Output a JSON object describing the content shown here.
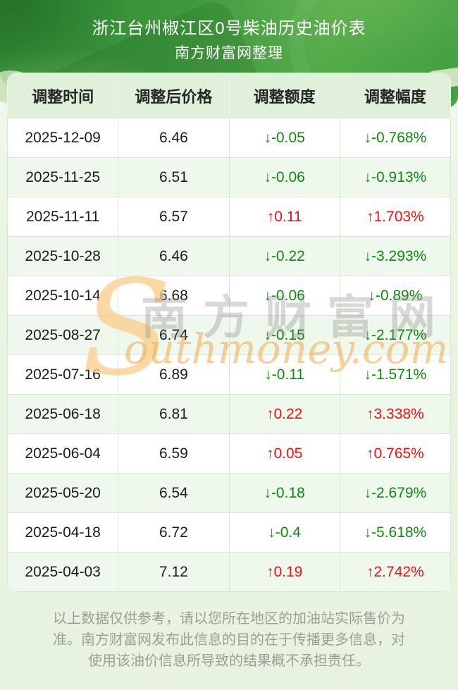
{
  "header": {
    "title": "浙江台州椒江区0号柴油历史油价表",
    "subtitle": "南方财富网整理"
  },
  "table": {
    "columns": [
      "调整时间",
      "调整后价格",
      "调整额度",
      "调整幅度"
    ],
    "rows": [
      {
        "date": "2025-12-09",
        "price": "6.46",
        "change": "-0.05",
        "percent": "-0.768%",
        "direction": "down"
      },
      {
        "date": "2025-11-25",
        "price": "6.51",
        "change": "-0.06",
        "percent": "-0.913%",
        "direction": "down"
      },
      {
        "date": "2025-11-11",
        "price": "6.57",
        "change": "0.11",
        "percent": "1.703%",
        "direction": "up"
      },
      {
        "date": "2025-10-28",
        "price": "6.46",
        "change": "-0.22",
        "percent": "-3.293%",
        "direction": "down"
      },
      {
        "date": "2025-10-14",
        "price": "6.68",
        "change": "-0.06",
        "percent": "-0.89%",
        "direction": "down"
      },
      {
        "date": "2025-08-27",
        "price": "6.74",
        "change": "-0.15",
        "percent": "-2.177%",
        "direction": "down"
      },
      {
        "date": "2025-07-16",
        "price": "6.89",
        "change": "-0.11",
        "percent": "-1.571%",
        "direction": "down"
      },
      {
        "date": "2025-06-18",
        "price": "6.81",
        "change": "0.22",
        "percent": "3.338%",
        "direction": "up"
      },
      {
        "date": "2025-06-04",
        "price": "6.59",
        "change": "0.05",
        "percent": "0.765%",
        "direction": "up"
      },
      {
        "date": "2025-05-20",
        "price": "6.54",
        "change": "-0.18",
        "percent": "-2.679%",
        "direction": "down"
      },
      {
        "date": "2025-04-18",
        "price": "6.72",
        "change": "-0.4",
        "percent": "-5.618%",
        "direction": "down"
      },
      {
        "date": "2025-04-03",
        "price": "7.12",
        "change": "0.19",
        "percent": "2.742%",
        "direction": "up"
      }
    ]
  },
  "arrows": {
    "up": "↑",
    "down": "↓"
  },
  "watermark": {
    "initial": "S",
    "cn": "南方财富网",
    "domain": "outhmoney.com"
  },
  "footer": {
    "disclaimer": "以上数据仅供参考，请以您所在地区的加油站实际售价为准。南方财富网发布此信息的目的在于传播更多信息，对使用该油价信息所导致的结果概不承担责任。"
  },
  "colors": {
    "hero_green": "#3f9a3e",
    "hero_green_dark": "#2f8a33",
    "header_row_bg": "#e1f0da",
    "alt_row_bg": "#eff8ec",
    "up_red": "#f31212",
    "down_green": "#0e8a10",
    "watermark_orange": "#f2b25e",
    "footer_text": "#9aa097"
  }
}
